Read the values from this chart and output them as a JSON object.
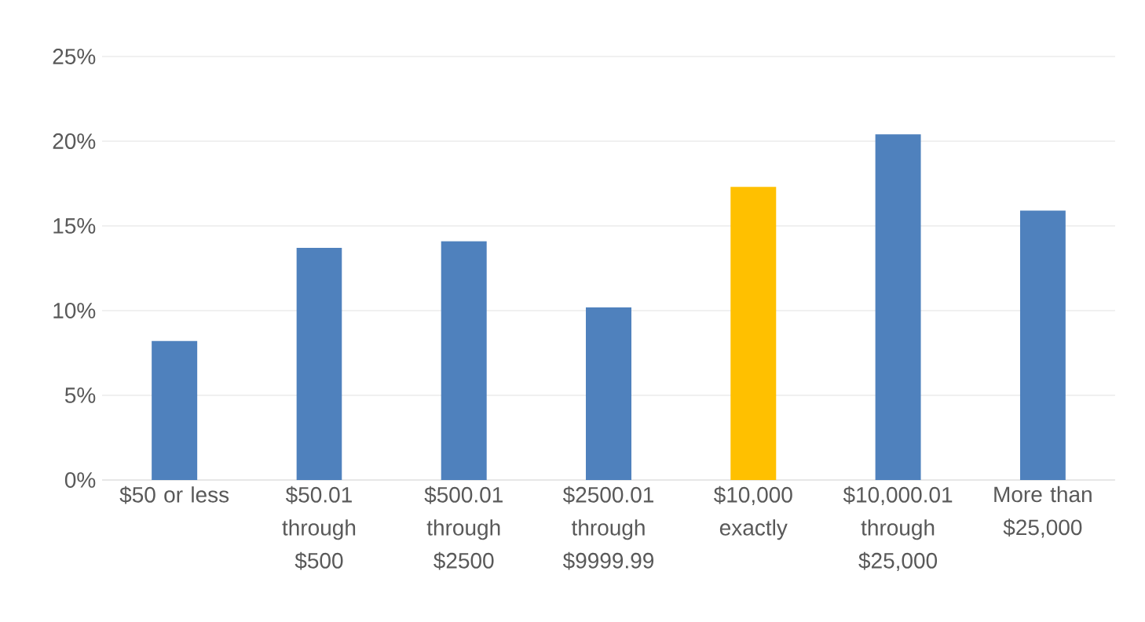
{
  "chart_data": {
    "type": "bar",
    "categories": [
      "$50 or less",
      "$50.01 through $500",
      "$500.01 through $2500",
      "$2500.01 through $9999.99",
      "$10,000 exactly",
      "$10,000.01 through $25,000",
      "More than $25,000"
    ],
    "values": [
      8.2,
      13.7,
      14.1,
      10.2,
      17.3,
      20.4,
      15.9
    ],
    "colors": [
      "#4f81bd",
      "#4f81bd",
      "#4f81bd",
      "#4f81bd",
      "#ffc000",
      "#4f81bd",
      "#4f81bd"
    ],
    "ylim": [
      0,
      25
    ],
    "yticks": [
      {
        "value": 0,
        "label": "0%"
      },
      {
        "value": 5,
        "label": "5%"
      },
      {
        "value": 10,
        "label": "10%"
      },
      {
        "value": 15,
        "label": "15%"
      },
      {
        "value": 20,
        "label": "20%"
      },
      {
        "value": 25,
        "label": "25%"
      }
    ],
    "grid": "y"
  }
}
